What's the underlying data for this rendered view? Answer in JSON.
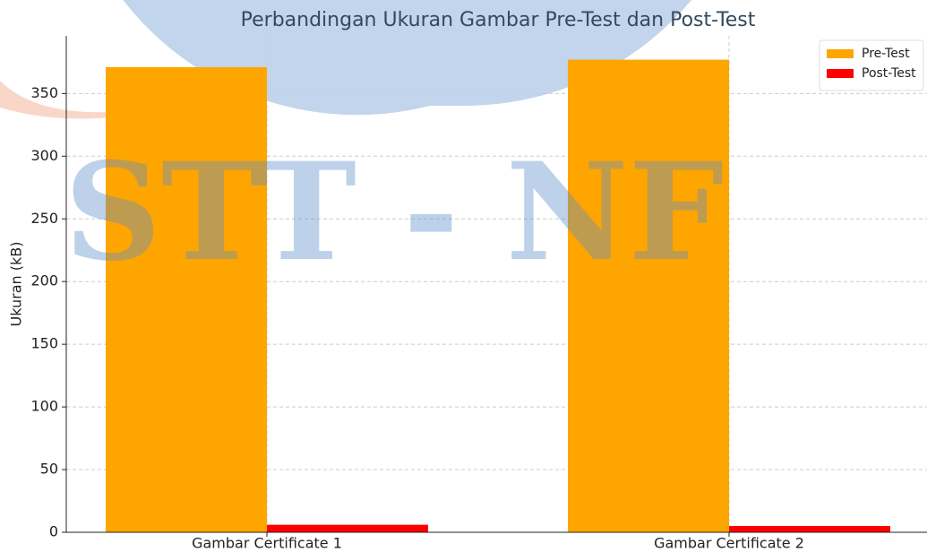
{
  "chart_data": {
    "type": "bar",
    "title": "Perbandingan Ukuran Gambar Pre-Test dan Post-Test",
    "watermark": "STT - NF",
    "y_label": "Ukuran (kB)",
    "categories": [
      "Gambar Certificate 1",
      "Gambar Certificate 2"
    ],
    "series": [
      {
        "name": "Pre-Test",
        "color": "#ffa500",
        "values": [
          371,
          377
        ]
      },
      {
        "name": "Post-Test",
        "color": "#ff0000",
        "values": [
          6,
          5
        ]
      }
    ],
    "ylim": [
      0,
      396
    ],
    "yticks": [
      0,
      50,
      100,
      150,
      200,
      250,
      300,
      350
    ],
    "grid": true,
    "legend": "upper right"
  }
}
